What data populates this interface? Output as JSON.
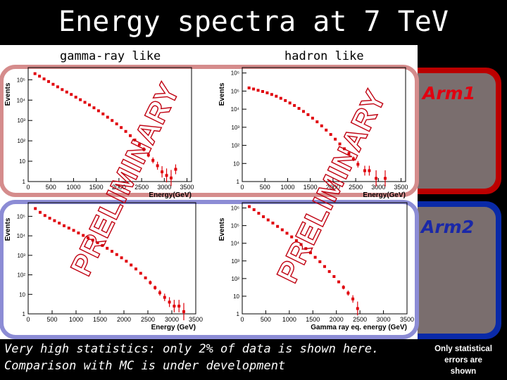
{
  "title": "Energy spectra at 7 TeV",
  "column_labels": {
    "gamma": "gamma-ray like",
    "hadron": "hadron like"
  },
  "arm_labels": {
    "arm1": "Arm1",
    "arm2": "Arm2"
  },
  "watermark": "PRELIMINARY",
  "bottom_note": {
    "line1": "Very high statistics: only 2% of data is shown here.",
    "line2": "Comparison with MC is under development"
  },
  "side_note": {
    "line1": "Only statistical",
    "line2": "errors are",
    "line3": "shown"
  },
  "colors": {
    "arm1": "#c0000f",
    "arm2": "#1a2aa6",
    "marker": "#e0000a",
    "arm1_frame": "#d58c8c",
    "arm2_frame": "#8c8cd5"
  },
  "chart_data": [
    {
      "type": "scatter",
      "name": "arm1-gamma",
      "ylabel": "Events",
      "xlabel": "Energy(GeV)",
      "xlim": [
        0,
        3600
      ],
      "ylim_log10": [
        0,
        5.6
      ],
      "x_ticks": [
        "0",
        "500",
        "1000",
        "1500",
        "2000",
        "2500",
        "3000",
        "3500"
      ],
      "y_ticks": [
        "1",
        "10",
        "10²",
        "10³",
        "10⁴",
        "10⁵"
      ],
      "x": [
        150,
        250,
        350,
        450,
        550,
        650,
        750,
        850,
        950,
        1050,
        1150,
        1250,
        1350,
        1450,
        1550,
        1650,
        1750,
        1850,
        1950,
        2050,
        2150,
        2250,
        2350,
        2450,
        2550,
        2650,
        2750,
        2850,
        2950,
        3050,
        3150,
        3250
      ],
      "y": [
        200000,
        150000,
        110000,
        82000,
        60000,
        45000,
        33000,
        25000,
        19000,
        14000,
        10500,
        7800,
        5800,
        4200,
        3000,
        2100,
        1450,
        1000,
        680,
        450,
        290,
        180,
        110,
        65,
        38,
        20,
        11,
        6,
        3,
        2,
        1.5,
        4
      ]
    },
    {
      "type": "scatter",
      "name": "arm1-hadron",
      "ylabel": "Events",
      "xlabel": "Energy(GeV)",
      "xlim": [
        0,
        3600
      ],
      "ylim_log10": [
        0,
        6.3
      ],
      "x_ticks": [
        "0",
        "500",
        "1000",
        "1500",
        "2000",
        "2500",
        "3000",
        "3500"
      ],
      "y_ticks": [
        "1",
        "10",
        "10²",
        "10³",
        "10⁴",
        "10⁵",
        "10⁶"
      ],
      "x": [
        150,
        250,
        350,
        450,
        550,
        650,
        750,
        850,
        950,
        1050,
        1150,
        1250,
        1350,
        1450,
        1550,
        1650,
        1750,
        1850,
        1950,
        2050,
        2150,
        2250,
        2350,
        2450,
        2550,
        2700,
        2800,
        2950,
        3150
      ],
      "y": [
        150000,
        130000,
        110000,
        95000,
        80000,
        65000,
        52000,
        40000,
        30000,
        22000,
        16000,
        11000,
        7500,
        5000,
        3200,
        2000,
        1200,
        700,
        400,
        220,
        120,
        65,
        35,
        18,
        9,
        4,
        4,
        1.5,
        1.5
      ]
    },
    {
      "type": "scatter",
      "name": "arm2-gamma",
      "ylabel": "Events",
      "xlabel": "Energy (GeV)",
      "xlim": [
        0,
        3500
      ],
      "ylim_log10": [
        0,
        5.7
      ],
      "x_ticks": [
        "0",
        "500",
        "1000",
        "1500",
        "2000",
        "2500",
        "3000",
        "3500"
      ],
      "y_ticks": [
        "1",
        "10",
        "10²",
        "10³",
        "10⁴",
        "10⁵"
      ],
      "x": [
        150,
        250,
        350,
        450,
        550,
        650,
        750,
        850,
        950,
        1050,
        1150,
        1250,
        1350,
        1450,
        1550,
        1650,
        1750,
        1850,
        1950,
        2050,
        2150,
        2250,
        2350,
        2450,
        2550,
        2650,
        2750,
        2850,
        2950,
        3050,
        3150,
        3250
      ],
      "y": [
        250000,
        160000,
        110000,
        80000,
        60000,
        45000,
        33000,
        25000,
        19000,
        14000,
        10500,
        8000,
        6000,
        4400,
        3200,
        2300,
        1600,
        1100,
        750,
        500,
        320,
        200,
        120,
        70,
        40,
        22,
        12,
        7,
        4,
        2.5,
        2.5,
        1.3
      ]
    },
    {
      "type": "scatter",
      "name": "arm2-hadron",
      "ylabel": "Events",
      "xlabel": "Gamma ray eq. energy (GeV)",
      "xlim": [
        0,
        3500
      ],
      "ylim_log10": [
        0,
        6.3
      ],
      "x_ticks": [
        "0",
        "500",
        "1000",
        "1500",
        "2000",
        "2500",
        "3000",
        "3500"
      ],
      "y_ticks": [
        "1",
        "10",
        "10²",
        "10³",
        "10⁴",
        "10⁵",
        "10⁶"
      ],
      "x": [
        150,
        250,
        350,
        450,
        550,
        650,
        750,
        850,
        950,
        1050,
        1150,
        1250,
        1350,
        1450,
        1550,
        1650,
        1750,
        1850,
        1950,
        2050,
        2150,
        2250,
        2350,
        2450
      ],
      "y": [
        1200000,
        800000,
        500000,
        320000,
        210000,
        140000,
        90000,
        58000,
        37000,
        23000,
        14000,
        8500,
        5000,
        2900,
        1600,
        900,
        480,
        250,
        130,
        65,
        32,
        15,
        7,
        2
      ]
    }
  ]
}
